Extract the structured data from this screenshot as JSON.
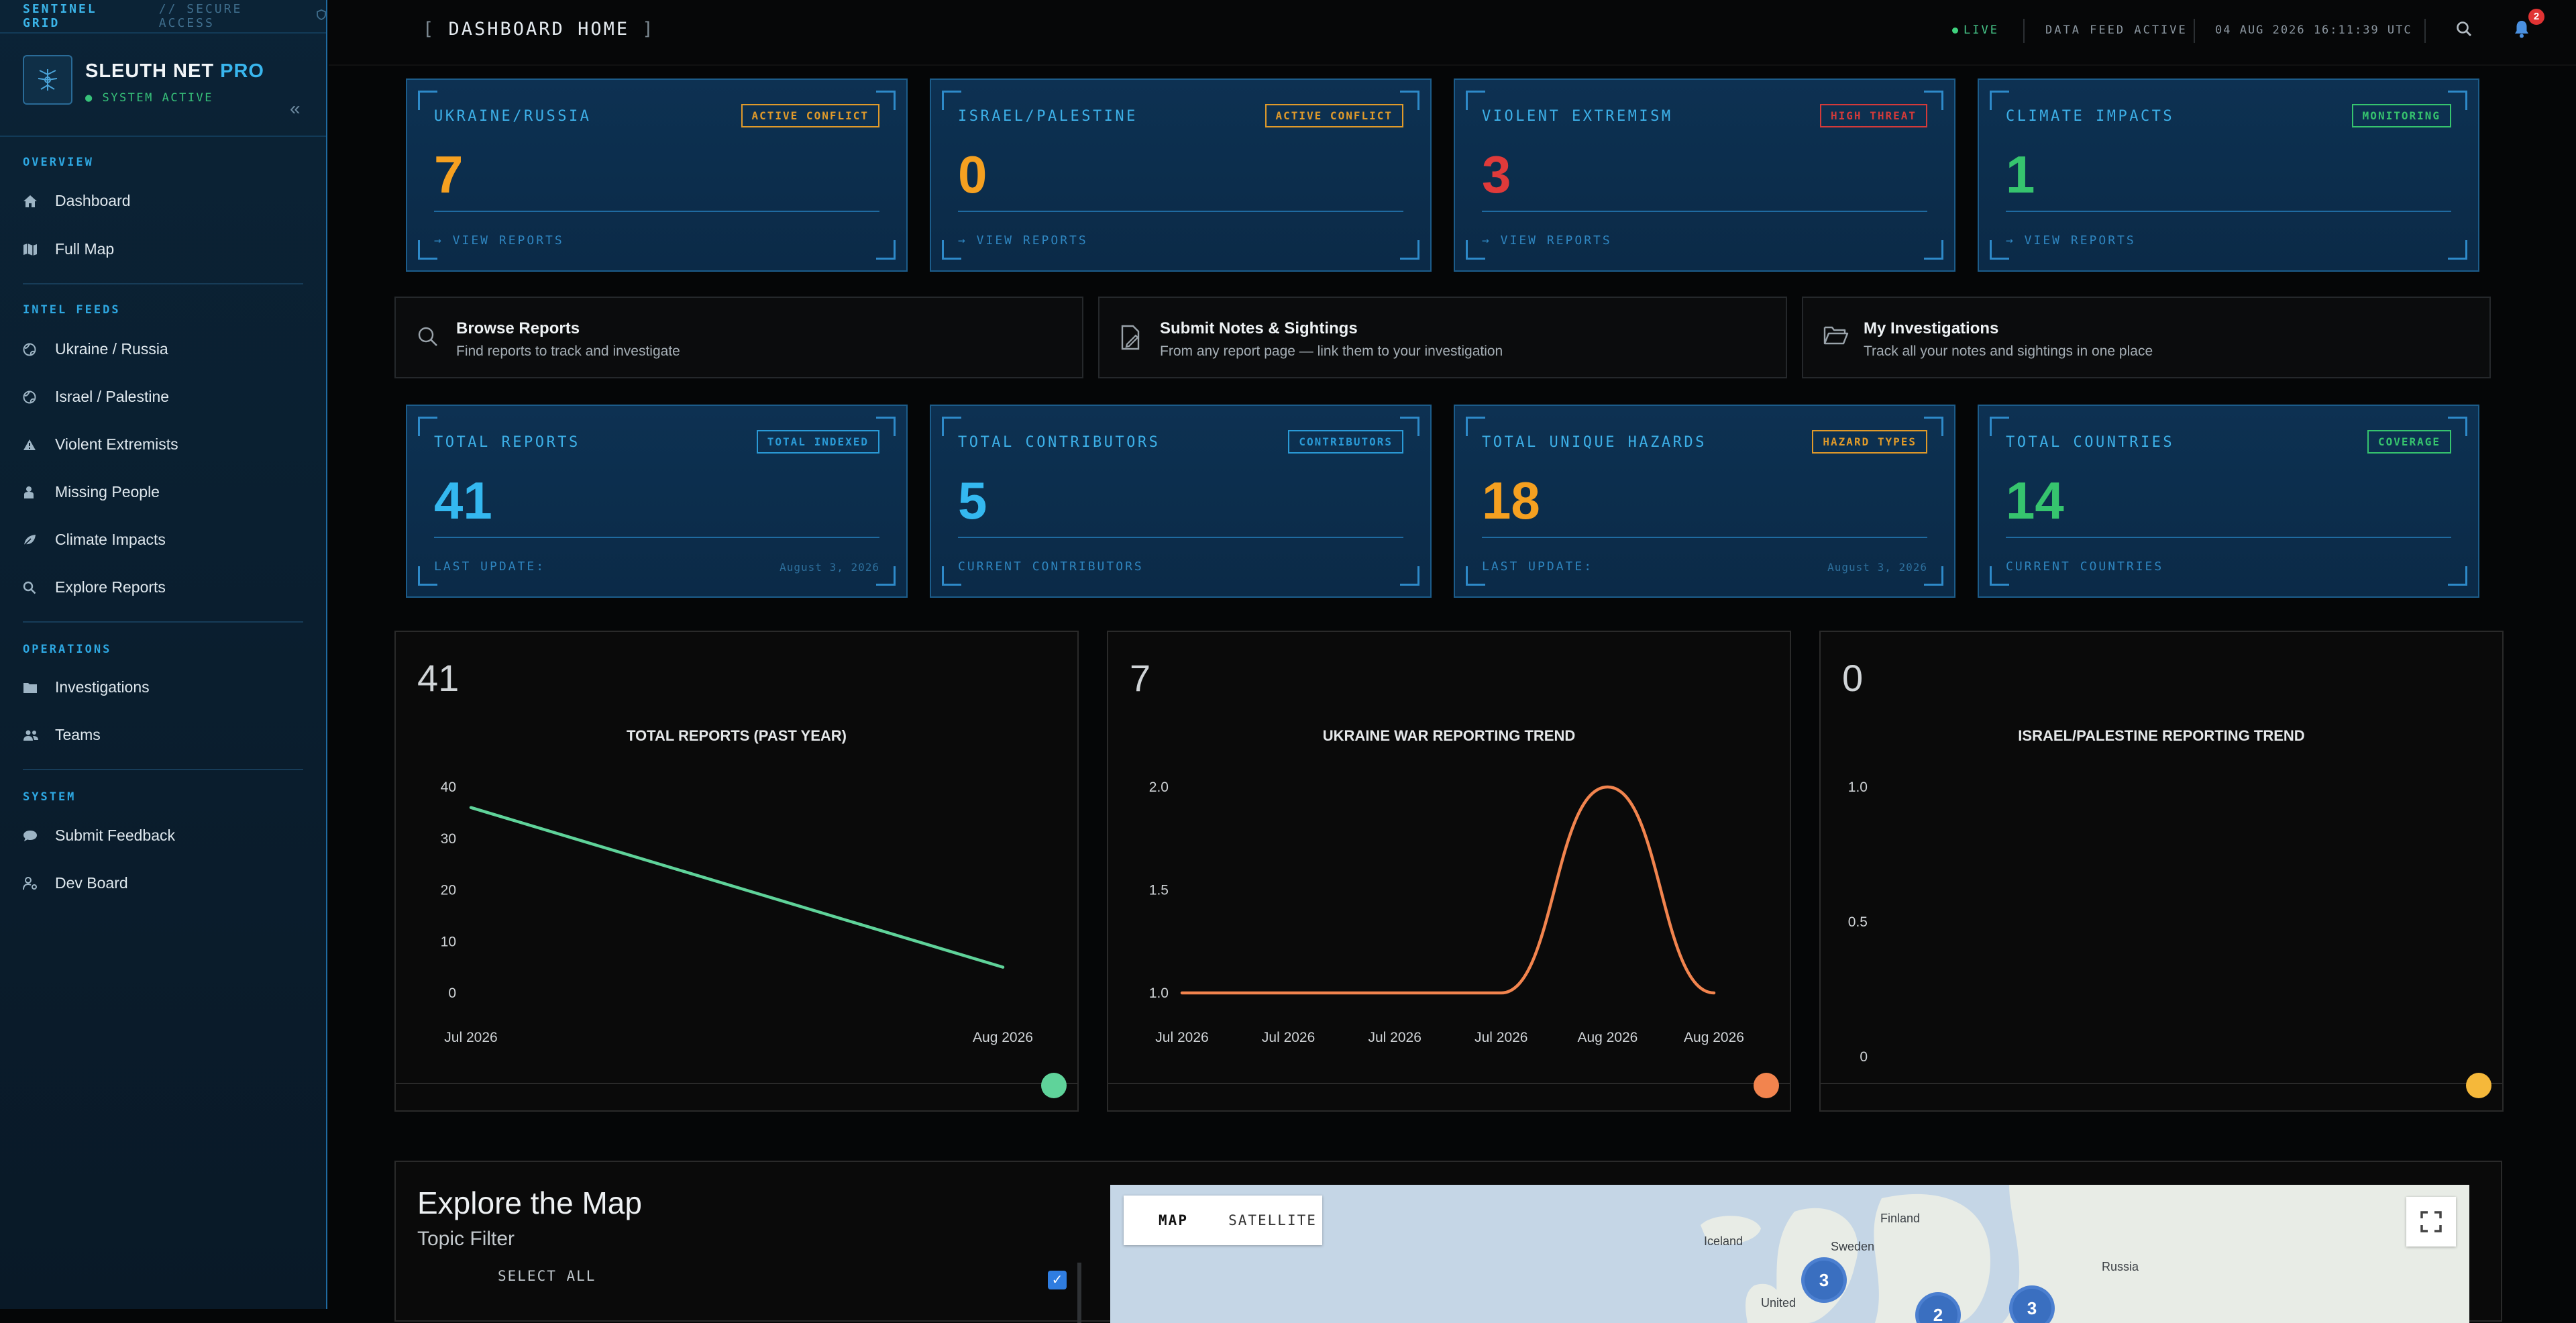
{
  "sidebar": {
    "brand": "SENTINEL GRID",
    "access": "// SECURE ACCESS",
    "app_name_main": "SLEUTH NET",
    "app_name_accent": "PRO",
    "status": "● SYSTEM ACTIVE",
    "sections": {
      "overview": "OVERVIEW",
      "intel": "INTEL FEEDS",
      "operations": "OPERATIONS",
      "system": "SYSTEM"
    },
    "items": {
      "dashboard": "Dashboard",
      "full_map": "Full Map",
      "ukraine": "Ukraine / Russia",
      "israel": "Israel / Palestine",
      "extremists": "Violent Extremists",
      "missing": "Missing People",
      "climate": "Climate Impacts",
      "explore": "Explore Reports",
      "investigations": "Investigations",
      "teams": "Teams",
      "feedback": "Submit Feedback",
      "devboard": "Dev Board"
    }
  },
  "topbar": {
    "title": "DASHBOARD HOME",
    "live": "LIVE",
    "feed": "DATA FEED ACTIVE",
    "clock": "04 AUG 2026 16:11:39 UTC",
    "notifications": "2"
  },
  "conflict_cards": [
    {
      "title": "UKRAINE/RUSSIA",
      "badge": "ACTIVE CONFLICT",
      "value": "7",
      "footer": "→ VIEW REPORTS",
      "value_color": "#f5a020",
      "badge_color": "#e09a2a"
    },
    {
      "title": "ISRAEL/PALESTINE",
      "badge": "ACTIVE CONFLICT",
      "value": "0",
      "footer": "→ VIEW REPORTS",
      "value_color": "#f5a020",
      "badge_color": "#e09a2a"
    },
    {
      "title": "VIOLENT EXTREMISM",
      "badge": "HIGH THREAT",
      "value": "3",
      "footer": "→ VIEW REPORTS",
      "value_color": "#e03a3a",
      "badge_color": "#d33a3a"
    },
    {
      "title": "CLIMATE IMPACTS",
      "badge": "MONITORING",
      "value": "1",
      "footer": "→ VIEW REPORTS",
      "value_color": "#36c46e",
      "badge_color": "#36c46e"
    }
  ],
  "actions": [
    {
      "title": "Browse Reports",
      "subtitle": "Find reports to track and investigate"
    },
    {
      "title": "Submit Notes & Sightings",
      "subtitle": "From any report page — link them to your investigation"
    },
    {
      "title": "My Investigations",
      "subtitle": "Track all your notes and sightings in one place"
    }
  ],
  "stat_cards": [
    {
      "title": "TOTAL REPORTS",
      "badge": "TOTAL INDEXED",
      "value": "41",
      "footer": "LAST UPDATE:",
      "date": "August 3, 2026",
      "value_color": "#34b8f0",
      "badge_color": "#2a9ad6"
    },
    {
      "title": "TOTAL CONTRIBUTORS",
      "badge": "CONTRIBUTORS",
      "value": "5",
      "footer": "CURRENT CONTRIBUTORS",
      "date": "",
      "value_color": "#34b8f0",
      "badge_color": "#2a9ad6"
    },
    {
      "title": "TOTAL UNIQUE HAZARDS",
      "badge": "HAZARD TYPES",
      "value": "18",
      "footer": "LAST UPDATE:",
      "date": "August 3, 2026",
      "value_color": "#f5a020",
      "badge_color": "#e09a2a"
    },
    {
      "title": "TOTAL COUNTRIES",
      "badge": "COVERAGE",
      "value": "14",
      "footer": "CURRENT COUNTRIES",
      "date": "",
      "value_color": "#36c46e",
      "badge_color": "#36c46e"
    }
  ],
  "chart_data": [
    {
      "type": "line",
      "headline": "41",
      "title": "TOTAL REPORTS (PAST YEAR)",
      "x": [
        "Jul 2026",
        "Aug 2026"
      ],
      "series": [
        {
          "values": [
            36,
            5
          ]
        }
      ],
      "yticks": [
        0,
        10,
        20,
        30,
        40
      ],
      "ylim": [
        0,
        40
      ],
      "color": "#5fd39a"
    },
    {
      "type": "line",
      "headline": "7",
      "title": "UKRAINE WAR REPORTING TREND",
      "x": [
        "Jul 2026",
        "Jul 2026",
        "Jul 2026",
        "Jul 2026",
        "Aug 2026",
        "Aug 2026"
      ],
      "series": [
        {
          "values": [
            1,
            1,
            1,
            1,
            2,
            1
          ]
        }
      ],
      "yticks": [
        "1.0",
        "1.5",
        "2.0"
      ],
      "ylim": [
        1,
        2
      ],
      "color": "#f2844e"
    },
    {
      "type": "line",
      "headline": "0",
      "title": "ISRAEL/PALESTINE REPORTING TREND",
      "x": [],
      "series": [
        {
          "values": []
        }
      ],
      "yticks": [
        "0",
        "0.5",
        "1.0"
      ],
      "ylim": [
        0,
        1
      ],
      "color": "#f5b83a"
    }
  ],
  "explore": {
    "title": "Explore the Map",
    "subtitle": "Topic Filter",
    "select_all": "SELECT ALL",
    "map_tab": "MAP",
    "satellite_tab": "SATELLITE",
    "labels": {
      "finland": "Finland",
      "iceland": "Iceland",
      "sweden": "Sweden",
      "russia": "Russia",
      "united": "United"
    },
    "clusters": [
      "3",
      "2",
      "3"
    ]
  }
}
